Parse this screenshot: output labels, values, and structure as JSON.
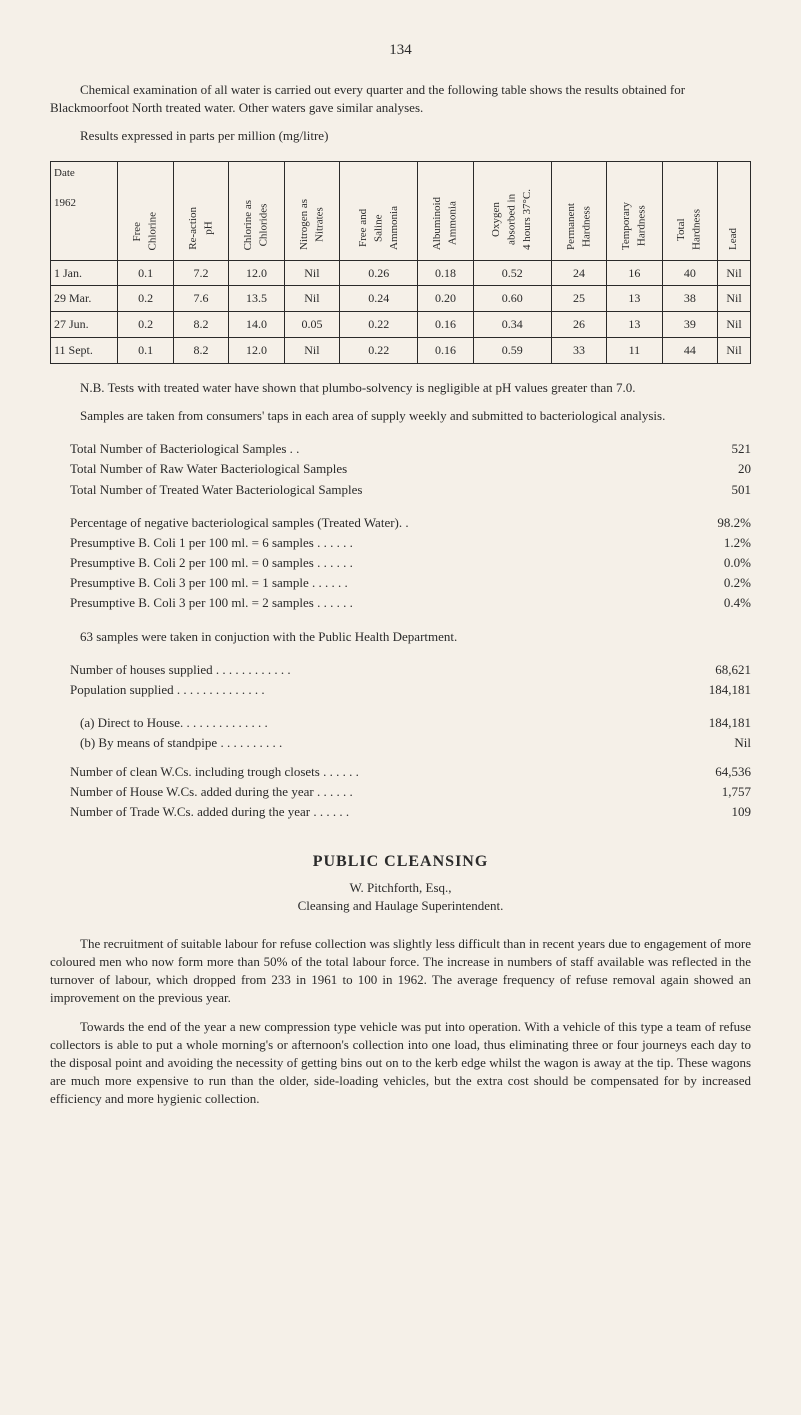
{
  "page_number": "134",
  "intro_para": "Chemical examination of all water is carried out every quarter and the following table shows the results obtained for Blackmoorfoot North treated water. Other waters gave similar analyses.",
  "table_caption": "Results expressed in parts per million (mg/litre)",
  "table": {
    "headers": [
      "Date\n\n1962",
      "Free\nChlorine",
      "Re-action\npH",
      "Chlorine as\nChlorides",
      "Nitrogen as\nNitrates",
      "Free and\nSaline\nAmmonia",
      "Albuminoid\nAmmonia",
      "Oxygen\nabsorbed in\n4 hours 37°C.",
      "Permanent\nHardness",
      "Temporary\nHardness",
      "Total\nHardness",
      "Lead"
    ],
    "rows": [
      [
        "1 Jan.",
        "0.1",
        "7.2",
        "12.0",
        "Nil",
        "0.26",
        "0.18",
        "0.52",
        "24",
        "16",
        "40",
        "Nil"
      ],
      [
        "29 Mar.",
        "0.2",
        "7.6",
        "13.5",
        "Nil",
        "0.24",
        "0.20",
        "0.60",
        "25",
        "13",
        "38",
        "Nil"
      ],
      [
        "27 Jun.",
        "0.2",
        "8.2",
        "14.0",
        "0.05",
        "0.22",
        "0.16",
        "0.34",
        "26",
        "13",
        "39",
        "Nil"
      ],
      [
        "11 Sept.",
        "0.1",
        "8.2",
        "12.0",
        "Nil",
        "0.22",
        "0.16",
        "0.59",
        "33",
        "11",
        "44",
        "Nil"
      ]
    ]
  },
  "nb_para": "N.B. Tests with treated water have shown that plumbo-solvency is negligible at pH values greater than 7.0.",
  "samples_para": "Samples are taken from consumers' taps in each area of supply weekly and submitted to bacteriological analysis.",
  "stats1": [
    {
      "label": "Total Number of Bacteriological Samples  . .",
      "dots": ". .       . .      . .",
      "value": "521"
    },
    {
      "label": "Total Number of Raw Water Bacteriological Samples",
      "dots": ". .      . .",
      "value": "20"
    },
    {
      "label": "Total Number of Treated Water Bacteriological Samples",
      "dots": ". .",
      "value": "501"
    }
  ],
  "stats2": [
    {
      "label": "Percentage of negative bacteriological samples (Treated Water). .",
      "value": "98.2%"
    },
    {
      "label": "Presumptive B. Coli  1 per 100 ml.  =  6 samples  . .        . .        . .",
      "value": "1.2%"
    },
    {
      "label": "Presumptive B. Coli  2 per 100 ml.  =  0 samples  . .        . .        . .",
      "value": "0.0%"
    },
    {
      "label": "Presumptive B. Coli  3 per 100 ml.  =  1 sample    . .        . .        . .",
      "value": "0.2%"
    },
    {
      "label": "Presumptive B. Coli  3 per 100 ml.  =  2 samples  . .        . .        . .",
      "value": "0.4%"
    }
  ],
  "conjuction_para": "63 samples were taken in conjuction with the Public Health Department.",
  "stats3": [
    {
      "label": "Number of houses supplied    . .        . .        . .        . .        . .        . .",
      "value": "68,621"
    },
    {
      "label": "Population supplied    . .        . .        . .        . .        . .        . .        . .",
      "value": "184,181"
    }
  ],
  "stats3_inner": [
    {
      "label": "(a)  Direct to House. .        . .        . .        . .        . .        . .        . .",
      "value": "184,181"
    },
    {
      "label": "(b)  By means of standpipe              . .        . .        . .        . .        . .",
      "value": "Nil"
    }
  ],
  "stats4": [
    {
      "label": "Number of clean W.Cs. including trough closets   . .        . .        . .",
      "value": "64,536"
    },
    {
      "label": "Number of House W.Cs. added during the year    . .        . .        . .",
      "value": "1,757"
    },
    {
      "label": "Number of Trade W.Cs. added during the year     . .        . .        . .",
      "value": "109"
    }
  ],
  "cleansing": {
    "title": "PUBLIC CLEANSING",
    "subtitle1": "W. Pitchforth, Esq.,",
    "subtitle2": "Cleansing and Haulage Superintendent.",
    "para1": "The recruitment of suitable labour for refuse collection was slightly less difficult than in recent years due to engagement of more coloured men who now form more than 50% of the total labour force.   The increase in numbers of staff available was reflected in the turnover of labour, which dropped from 233 in 1961 to 100 in 1962.   The average frequency of refuse removal again showed an improvement on the previous year.",
    "para2": "Towards the end of the year a new compression type vehicle was put into operation.   With a vehicle of this type a team of refuse collectors is able to put a whole morning's or afternoon's collection into one load, thus eliminating three or four journeys each day to the disposal point and avoiding the necessity of getting bins out on to the kerb edge whilst the wagon is away at the tip.   These wagons are much more expensive to run than the older, side-loading vehicles, but the extra cost should be compensated for by increased efficiency and more hygienic collection."
  }
}
